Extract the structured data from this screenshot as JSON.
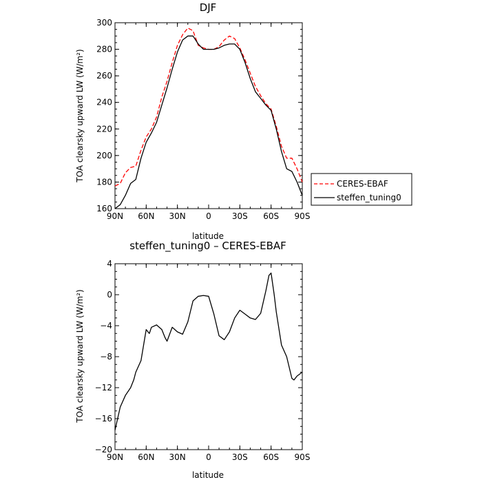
{
  "chart_data": [
    {
      "type": "line",
      "title": "DJF",
      "xlabel": "latitude",
      "ylabel": "TOA clearsky upward LW (W/m²)",
      "x_ticks": [
        "90N",
        "60N",
        "30N",
        "0",
        "30S",
        "60S",
        "90S"
      ],
      "xlim": [
        90,
        -90
      ],
      "ylim": [
        160,
        300
      ],
      "y_ticks": [
        160,
        180,
        200,
        220,
        240,
        260,
        280,
        300
      ],
      "x": [
        90,
        85,
        80,
        75,
        70,
        65,
        60,
        55,
        50,
        45,
        40,
        35,
        30,
        25,
        20,
        15,
        10,
        5,
        0,
        -5,
        -10,
        -15,
        -20,
        -25,
        -30,
        -35,
        -40,
        -45,
        -50,
        -55,
        -60,
        -65,
        -70,
        -75,
        -80,
        -85,
        -90
      ],
      "series": [
        {
          "name": "CERES-EBAF",
          "color": "#ff0000",
          "style": "dashed",
          "values": [
            177,
            179,
            187,
            191,
            192,
            204,
            214,
            220,
            229,
            244,
            256,
            270,
            283,
            291,
            296,
            294,
            283,
            281,
            280,
            280,
            282,
            287,
            290,
            288,
            281,
            272,
            262,
            252,
            245,
            239,
            235,
            222,
            207,
            198,
            198,
            190,
            180
          ]
        },
        {
          "name": "steffen_tuning0",
          "color": "#000000",
          "style": "solid",
          "values": [
            160,
            163,
            170,
            179,
            182,
            198,
            210,
            217,
            225,
            238,
            251,
            265,
            278,
            287,
            290,
            290,
            284,
            280,
            280,
            280,
            281,
            283,
            284,
            284,
            280,
            270,
            258,
            248,
            243,
            238,
            234,
            220,
            203,
            190,
            188,
            180,
            170
          ]
        }
      ],
      "legend": "right"
    },
    {
      "type": "line",
      "title": "steffen_tuning0 – CERES-EBAF",
      "xlabel": "latitude",
      "ylabel": "TOA clearsky upward LW (W/m²)",
      "x_ticks": [
        "90N",
        "60N",
        "30N",
        "0",
        "30S",
        "60S",
        "90S"
      ],
      "xlim": [
        90,
        -90
      ],
      "ylim": [
        -20,
        4
      ],
      "y_ticks": [
        -20,
        -16,
        -12,
        -8,
        -4,
        0,
        4
      ],
      "x": [
        90,
        85,
        80,
        75,
        72,
        70,
        65,
        60,
        57,
        55,
        50,
        45,
        42,
        40,
        35,
        30,
        25,
        20,
        15,
        10,
        5,
        0,
        -5,
        -10,
        -15,
        -20,
        -25,
        -30,
        -35,
        -40,
        -45,
        -50,
        -55,
        -58,
        -60,
        -63,
        -65,
        -70,
        -75,
        -80,
        -82,
        -85,
        -90
      ],
      "series": [
        {
          "name": "steffen_tuning0 – CERES-EBAF",
          "color": "#000000",
          "style": "solid",
          "values": [
            -17.5,
            -14.5,
            -13,
            -12,
            -11,
            -10,
            -8.5,
            -4.5,
            -5,
            -4.2,
            -3.9,
            -4.5,
            -5.5,
            -6,
            -4.2,
            -4.8,
            -5.1,
            -3.5,
            -0.8,
            -0.2,
            -0.1,
            -0.2,
            -2.5,
            -5.3,
            -5.8,
            -4.8,
            -3,
            -2,
            -2.5,
            -3,
            -3.2,
            -2.4,
            0.5,
            2.5,
            2.8,
            0,
            -2.2,
            -6.5,
            -8,
            -10.8,
            -11,
            -10.5,
            -10
          ]
        }
      ]
    }
  ]
}
